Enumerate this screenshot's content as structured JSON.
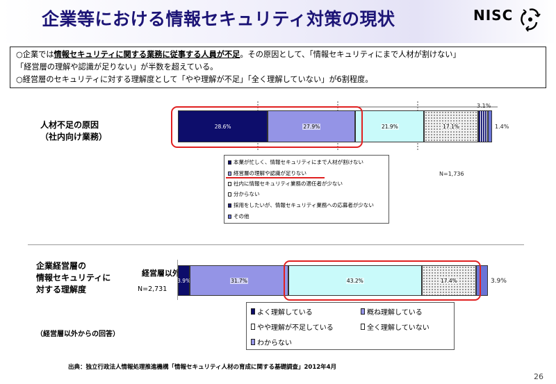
{
  "header": {
    "title": "企業等における情報セキュリティ対策の現状",
    "logo": "NISC"
  },
  "summary": {
    "line1_pre": "○企業では",
    "line1_emph": "情報セキュリティに関する業務に従事する人員が不足",
    "line1_post": "。その原因として、「情報セキュリティにまで人材が割けない」",
    "line2": "「経営層の理解や認識が足りない」が半数を超えている。",
    "line3": "○経営層のセキュリティに対する理解度として「やや理解が不足」「全く理解していない」が6割程度。"
  },
  "chart1": {
    "label_line1": "人材不足の原因",
    "label_line2": "（社内向け業務）",
    "n_label": "N=1,736",
    "small_top_label": "3.1%",
    "small_right_label": "1.4%"
  },
  "chart2": {
    "label_line1": "企業経営層の",
    "label_line2": "情報セキュリティに",
    "label_line3": "対する理解度",
    "category_label": "経営層以外",
    "n_label": "N=2,731",
    "note": "（経営層以外からの回答）",
    "right_label": "3.9%"
  },
  "chart_data": [
    {
      "type": "bar",
      "orientation": "horizontal-stacked-100",
      "categories": [
        "人材不足の原因（社内向け業務）"
      ],
      "series": [
        {
          "name": "本業が忙しく、情報セキュリティにまで人材が割けない",
          "values": [
            28.6
          ],
          "label": "28.6%",
          "color": "#0d0d6b",
          "text_color": "#ffffff"
        },
        {
          "name": "経営層の理解や認識が足りない",
          "values": [
            27.9
          ],
          "label": "27.9%",
          "color": "#9494e6",
          "text_color": "#000000"
        },
        {
          "name": "社内に情報セキュリティ業務の適任者が少ない",
          "values": [
            21.9
          ],
          "label": "21.9%",
          "color": "#c9fafa",
          "text_color": "#000000"
        },
        {
          "name": "分からない",
          "values": [
            17.1
          ],
          "label": "17.1%",
          "color": "#f2f2f2",
          "text_color": "#000000",
          "pattern": "dots"
        },
        {
          "name": "採用をしたいが、情報セキュリティ業務への応募者が少ない",
          "values": [
            3.1
          ],
          "label": "",
          "color": "#20207a",
          "text_color": "#000000",
          "pattern": "stripes"
        },
        {
          "name": "その他",
          "values": [
            1.4
          ],
          "label": "",
          "color": "#6a74d6",
          "text_color": "#000000"
        }
      ],
      "xlim": [
        0,
        100
      ]
    },
    {
      "type": "bar",
      "orientation": "horizontal-stacked-100",
      "categories": [
        "経営層以外"
      ],
      "series": [
        {
          "name": "よく理解している",
          "values": [
            3.9
          ],
          "label": "3.9%",
          "color": "#0d0d6b",
          "text_color": "#ffffff"
        },
        {
          "name": "概ね理解している",
          "values": [
            31.7
          ],
          "label": "31.7%",
          "color": "#9494e6",
          "text_color": "#000000"
        },
        {
          "name": "やや理解が不足している",
          "values": [
            43.2
          ],
          "label": "43.2%",
          "color": "#c9fafa",
          "text_color": "#000000"
        },
        {
          "name": "全く理解していない",
          "values": [
            17.4
          ],
          "label": "17.4%",
          "color": "#f2f2f2",
          "text_color": "#000000",
          "pattern": "dots"
        },
        {
          "name": "わからない",
          "values": [
            3.9
          ],
          "label": "",
          "color": "#6a74d6",
          "text_color": "#000000"
        }
      ],
      "xlim": [
        0,
        100
      ]
    }
  ],
  "legend1": [
    {
      "label": "本業が忙しく、情報セキュリティにまで人材が割けない",
      "color": "#0d0d6b"
    },
    {
      "label": "経営層の理解や認識が足りない",
      "color": "#9494e6"
    },
    {
      "label": "社内に情報セキュリティ業務の適任者が少ない",
      "color": "#ffffff"
    },
    {
      "label": "分からない",
      "color": "#ffffff"
    },
    {
      "label": "採用をしたいが、情報セキュリティ業務への応募者が少ない",
      "color": "#20207a"
    },
    {
      "label": "その他",
      "color": "#6a74d6"
    }
  ],
  "legend2": [
    {
      "label": "よく理解している",
      "color": "#0d0d6b"
    },
    {
      "label": "概ね理解している",
      "color": "#9494e6"
    },
    {
      "label": "やや理解が不足している",
      "color": "#ffffff"
    },
    {
      "label": "全く理解していない",
      "color": "#ffffff"
    },
    {
      "label": "わからない",
      "color": "#9494e6"
    }
  ],
  "footer": {
    "source": "出典：独立行政法人情報処理推進機構「情報セキュリティ人材の育成に関する基礎調査」2012年4月",
    "page_number": "26"
  }
}
